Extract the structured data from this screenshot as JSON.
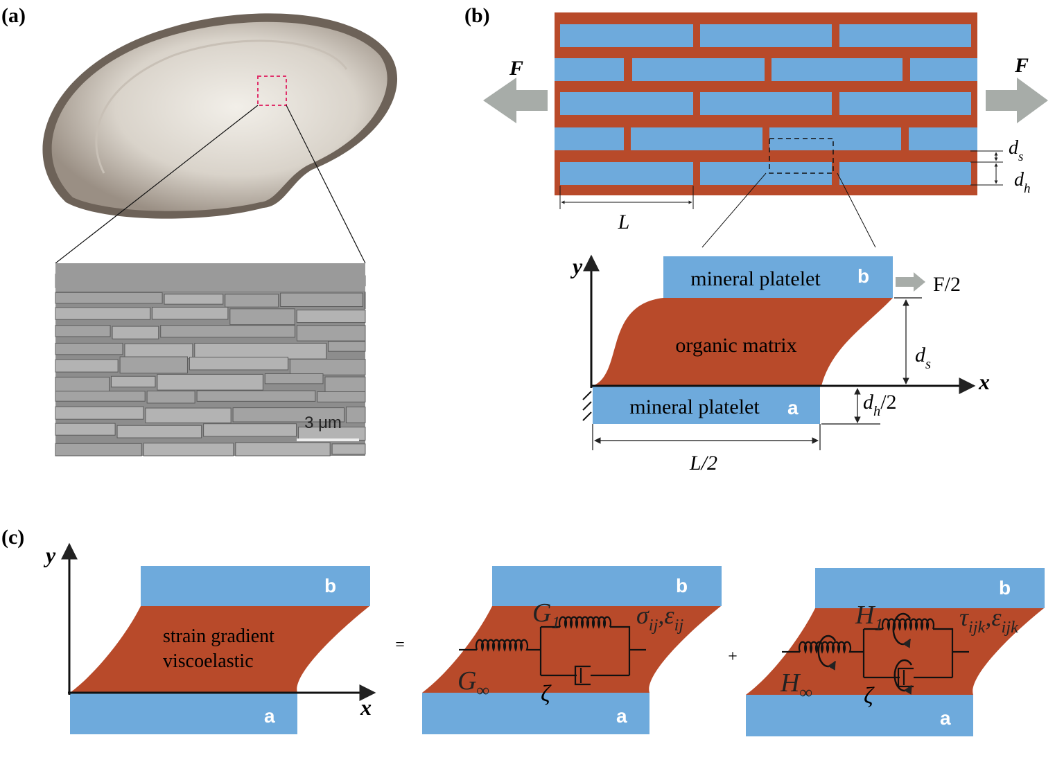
{
  "panel_labels": [
    "(a)",
    "(b)",
    "(c)"
  ],
  "panel_a": {
    "scale_bar": "3 μm"
  },
  "panel_b": {
    "force_left": "F",
    "force_right": "F",
    "spacing": {
      "base": "d",
      "sub": "s"
    },
    "thickness": {
      "base": "d",
      "sub": "h"
    },
    "length": "L",
    "axis_y": "y",
    "axis_x": "x",
    "top_platelet": "mineral platelet",
    "top_label": "b",
    "half_force": "F/2",
    "matrix": "organic matrix",
    "gap": {
      "base": "d",
      "sub": "s"
    },
    "half_thickness": {
      "base": "d",
      "sub": "h",
      "suffix": "/2"
    },
    "bottom_platelet": "mineral platelet",
    "bottom_label": "a",
    "half_length": "L/2"
  },
  "panel_c": {
    "axis_y": "y",
    "axis_x": "x",
    "cells": [
      {
        "top_label": "b",
        "bottom_label": "a",
        "text_lines": [
          "strain gradient",
          "viscoelastic"
        ]
      },
      {
        "top_label": "b",
        "bottom_label": "a",
        "spring_1": {
          "base": "G",
          "sub": "1"
        },
        "spring_inf": {
          "base": "G",
          "sub": "∞"
        },
        "dashpot": "ζ",
        "fields": [
          {
            "base": "σ",
            "sub": "ij"
          },
          {
            "base": "ε",
            "sub": "ij"
          }
        ],
        "separator": ","
      },
      {
        "top_label": "b",
        "bottom_label": "a",
        "spring_1": {
          "base": "H",
          "sub": "1"
        },
        "spring_inf": {
          "base": "H",
          "sub": "∞"
        },
        "dashpot": "ζ",
        "fields": [
          {
            "base": "τ",
            "sub": "ijk"
          },
          {
            "base": "ε",
            "sub": "ijk"
          }
        ],
        "separator": ","
      }
    ],
    "operators": [
      "=",
      "+"
    ]
  }
}
